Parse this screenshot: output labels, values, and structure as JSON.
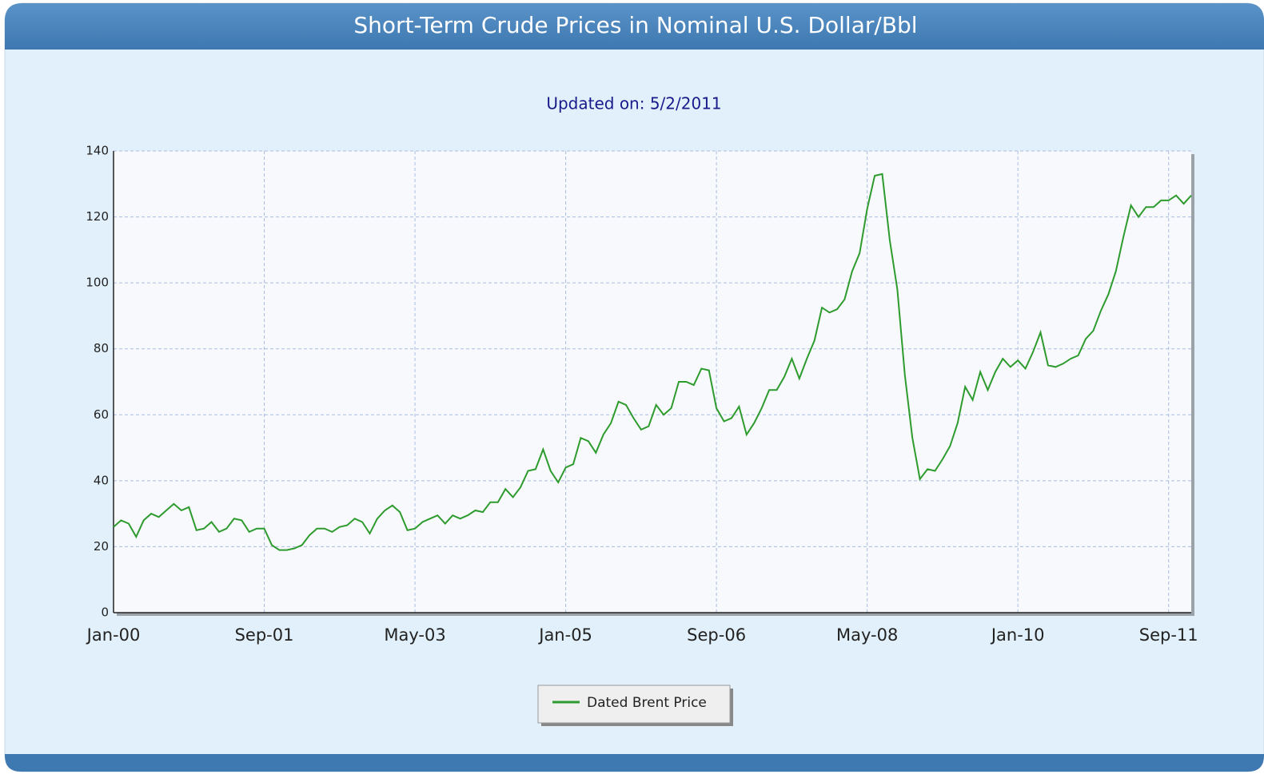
{
  "chart_data": {
    "type": "line",
    "title": "Short-Term Crude Prices in Nominal U.S. Dollar/Bbl",
    "subtitle": "Updated on: 5/2/2011",
    "categories": [
      "Jan-00",
      null,
      null,
      null,
      null,
      null,
      null,
      null,
      null,
      null,
      null,
      null,
      null,
      null,
      null,
      null,
      null,
      null,
      null,
      null,
      "Sep-01",
      null,
      null,
      null,
      null,
      null,
      null,
      null,
      null,
      null,
      null,
      null,
      null,
      null,
      null,
      null,
      null,
      null,
      null,
      null,
      "May-03",
      null,
      null,
      null,
      null,
      null,
      null,
      null,
      null,
      null,
      null,
      null,
      null,
      null,
      null,
      null,
      null,
      null,
      null,
      null,
      "Jan-05",
      null,
      null,
      null,
      null,
      null,
      null,
      null,
      null,
      null,
      null,
      null,
      null,
      null,
      null,
      null,
      null,
      null,
      null,
      null,
      "Sep-06",
      null,
      null,
      null,
      null,
      null,
      null,
      null,
      null,
      null,
      null,
      null,
      null,
      null,
      null,
      null,
      null,
      null,
      null,
      null,
      "May-08",
      null,
      null,
      null,
      null,
      null,
      null,
      null,
      null,
      null,
      null,
      null,
      null,
      null,
      null,
      null,
      null,
      null,
      null,
      null,
      "Jan-10",
      null,
      null,
      null,
      null,
      null,
      null,
      null,
      null,
      null,
      null,
      null,
      null,
      null,
      null,
      null,
      null,
      null,
      null,
      null,
      "Sep-11",
      null,
      null,
      null
    ],
    "series": [
      {
        "name": "Dated Brent Price",
        "color": "#2e9b2e",
        "values": [
          26,
          28,
          27,
          23,
          28,
          30,
          29,
          31,
          33,
          31,
          32,
          25,
          25.5,
          27.5,
          24.5,
          25.5,
          28.5,
          28,
          24.5,
          25.5,
          25.5,
          20.5,
          19,
          19,
          19.5,
          20.5,
          23.5,
          25.5,
          25.5,
          24.5,
          26,
          26.5,
          28.5,
          27.5,
          24,
          28.5,
          31,
          32.5,
          30.5,
          25,
          25.5,
          27.5,
          28.5,
          29.5,
          27,
          29.5,
          28.5,
          29.5,
          31,
          30.5,
          33.5,
          33.5,
          37.5,
          35,
          38,
          43,
          43.5,
          49.5,
          43,
          39.5,
          44,
          45,
          53,
          52,
          48.5,
          54,
          57.5,
          64,
          63,
          59,
          55.5,
          56.5,
          63,
          60,
          62,
          70,
          70,
          69,
          74,
          73.5,
          62,
          58,
          59,
          62.5,
          54,
          57.5,
          62,
          67.5,
          67.5,
          71.5,
          77,
          71,
          77,
          82.5,
          92.5,
          91,
          92,
          95,
          103.5,
          109,
          122.5,
          132.5,
          133,
          113,
          98,
          72,
          53,
          40.5,
          43.5,
          43,
          46.5,
          50.5,
          57.5,
          68.5,
          64.5,
          73,
          67.5,
          73,
          77,
          74.5,
          76.5,
          74,
          79,
          85,
          75,
          74.5,
          75.5,
          77,
          78,
          83,
          85.5,
          91.5,
          96.5,
          103.5,
          114,
          123.5,
          120,
          123,
          123,
          125,
          125,
          126.5,
          124,
          126.5
        ]
      }
    ],
    "ylim": [
      0,
      140
    ],
    "yticks": [
      0,
      20,
      40,
      60,
      80,
      100,
      120,
      140
    ],
    "grid": true
  }
}
